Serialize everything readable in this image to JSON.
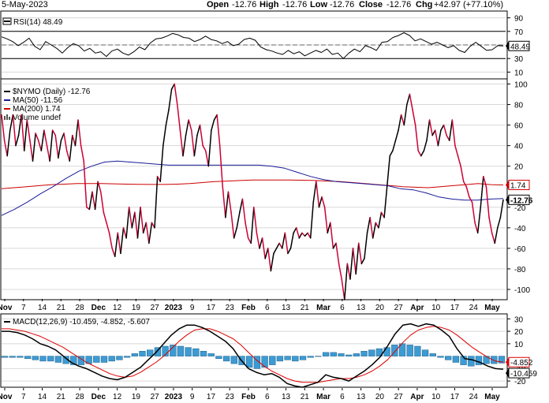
{
  "header": {
    "date": "5-May-2023",
    "open_label": "Open",
    "open_value": "-12.76",
    "high_label": "High",
    "high_value": "-12.76",
    "low_label": "Low",
    "low_value": "-12.76",
    "close_label": "Close",
    "close_value": "-12.76",
    "chg_label": "Chg",
    "chg_value": "+42.97 (+77.10%)"
  },
  "colors": {
    "rsi_line": "#000000",
    "price_up": "#000000",
    "price_down": "#cc0033",
    "ma50": "#1a1a99",
    "ma200": "#cc0000",
    "macd_line": "#000000",
    "signal_line": "#dd0000",
    "histogram": "#3d9bd3",
    "grid": "#d8d8d8"
  },
  "chart_data": [
    {
      "panel": "rsi",
      "type": "line",
      "legend": "RSI(14) 48.49",
      "legend_icon": "black-line-swatch",
      "ylim": [
        0,
        100
      ],
      "yticks": [
        "90",
        "70",
        "50",
        "30",
        "10"
      ],
      "reference_lines": [
        70,
        50,
        30
      ],
      "current_label": "48.49",
      "current_value": 48.49,
      "values": [
        62,
        59,
        55,
        49,
        54,
        60,
        48,
        43,
        55,
        50,
        45,
        38,
        46,
        52,
        49,
        41,
        45,
        38,
        40,
        33,
        41,
        44,
        38,
        35,
        40,
        47,
        43,
        53,
        59,
        60,
        63,
        67,
        65,
        61,
        60,
        55,
        58,
        63,
        58,
        56,
        52,
        55,
        49,
        51,
        58,
        60,
        57,
        47,
        43,
        41,
        38,
        36,
        42,
        37,
        40,
        34,
        38,
        42,
        39,
        44,
        36,
        38,
        30,
        38,
        44,
        40,
        49,
        46,
        42,
        54,
        55,
        61,
        64,
        68,
        64,
        56,
        59,
        55,
        51,
        54,
        50,
        46,
        49,
        42,
        39,
        48,
        54,
        48,
        42,
        43,
        49,
        48.49
      ]
    },
    {
      "panel": "price",
      "type": "line",
      "ylim": [
        -110,
        105
      ],
      "yticks": [
        "100",
        "80",
        "60",
        "40",
        "20",
        "-20",
        "-40",
        "-60",
        "-80",
        "-100"
      ],
      "legend": [
        {
          "icon": "black-line-swatch",
          "text": "$NYMO (Daily) -12.76"
        },
        {
          "icon": "blue-line-swatch",
          "text": "MA(50) -11.56"
        },
        {
          "icon": "red-line-swatch",
          "text": "MA(200) 1.74"
        },
        {
          "icon": "volume-bars-icon",
          "text": "Volume undef"
        }
      ],
      "value_tags": [
        {
          "label": "1.74",
          "value": 1.74,
          "style": "red-outline"
        },
        {
          "label": "-12.76",
          "value": -12.76,
          "style": "black-outline-bold"
        }
      ],
      "series": [
        {
          "name": "$NYMO (Daily)",
          "values": [
            70,
            45,
            30,
            55,
            70,
            40,
            50,
            70,
            35,
            65,
            45,
            25,
            52,
            45,
            35,
            55,
            40,
            25,
            55,
            50,
            28,
            45,
            52,
            35,
            25,
            50,
            40,
            65,
            40,
            25,
            -20,
            -22,
            -5,
            -22,
            5,
            -5,
            -25,
            -35,
            -45,
            -60,
            -68,
            -45,
            -65,
            -40,
            -50,
            -20,
            -40,
            -25,
            -50,
            -20,
            -45,
            -35,
            -55,
            -35,
            -40,
            10,
            5,
            40,
            60,
            75,
            95,
            100,
            80,
            55,
            30,
            50,
            65,
            55,
            30,
            50,
            60,
            40,
            35,
            20,
            55,
            65,
            70,
            40,
            0,
            -30,
            -5,
            -25,
            -50,
            -40,
            -25,
            -12,
            -35,
            -50,
            -55,
            -20,
            -45,
            -60,
            -50,
            -70,
            -60,
            -82,
            -65,
            -60,
            -55,
            -60,
            -45,
            -65,
            -60,
            -45,
            -40,
            -50,
            -45,
            -48,
            -45,
            -50,
            -15,
            5,
            -20,
            -10,
            -20,
            -45,
            -35,
            -60,
            -55,
            -75,
            -90,
            -110,
            -75,
            -90,
            -60,
            -85,
            -55,
            -75,
            -70,
            -45,
            -30,
            -50,
            -35,
            -40,
            -25,
            -30,
            0,
            30,
            35,
            45,
            55,
            70,
            60,
            80,
            90,
            75,
            60,
            35,
            30,
            35,
            45,
            65,
            50,
            55,
            40,
            55,
            60,
            50,
            45,
            65,
            40,
            30,
            20,
            5,
            0,
            -10,
            -15,
            -35,
            -45,
            -20,
            10,
            0,
            -30,
            -45,
            -55,
            -40,
            -30,
            -12.76
          ]
        },
        {
          "name": "MA(50)",
          "values": [
            -28,
            -22,
            -15,
            -7,
            0,
            8,
            15,
            20,
            24,
            25,
            24,
            23,
            22,
            21,
            21,
            21,
            21,
            21,
            21,
            21,
            21,
            20,
            18,
            14,
            10,
            7,
            5,
            4,
            3,
            2,
            1,
            -2,
            -3,
            -6,
            -10,
            -12,
            -13,
            -13,
            -12,
            -11.56
          ]
        },
        {
          "name": "MA(200)",
          "values": [
            -2,
            -1,
            0,
            1,
            2,
            2.5,
            3,
            3,
            3,
            2.8,
            2.5,
            2.3,
            2.2,
            2.2,
            2.5,
            3,
            4,
            5,
            5.5,
            6,
            6.5,
            6.5,
            6.5,
            6.5,
            6.3,
            6,
            5.5,
            5,
            4,
            3,
            2,
            1,
            0,
            -0.5,
            -1,
            0,
            1,
            2,
            3,
            2,
            1.74
          ]
        }
      ]
    },
    {
      "panel": "macd",
      "type": "line+histogram",
      "legend": "MACD(12,26,9) -10.459, -4.852, -5.607",
      "legend_icon": "black-line-swatch",
      "ylim": [
        -25,
        34
      ],
      "yticks": [
        "30",
        "20",
        "10",
        "-10",
        "-20"
      ],
      "value_tags": [
        {
          "label": "-4.852",
          "value": -4.852,
          "style": "red-outline"
        },
        {
          "label": "-10.459",
          "value": -10.459,
          "style": "black-outline"
        }
      ],
      "series": [
        {
          "name": "MACD",
          "values": [
            20,
            20,
            19,
            17,
            14,
            10,
            8,
            5,
            0,
            -5,
            -8,
            -10,
            -13,
            -16,
            -18,
            -19,
            -17,
            -13,
            -9,
            -3,
            3,
            10,
            17,
            22,
            25,
            25,
            23,
            20,
            16,
            12,
            6,
            -3,
            -10,
            -13,
            -15,
            -14,
            -17,
            -22,
            -24,
            -25,
            -23,
            -21,
            -15,
            -17,
            -18,
            -20,
            -16,
            -12,
            -7,
            -1,
            8,
            18,
            25,
            26,
            24,
            26,
            25,
            21,
            16,
            6,
            -2,
            -3,
            -5,
            -8,
            -10,
            -10.459
          ]
        },
        {
          "name": "Signal",
          "values": [
            22,
            22,
            21,
            20,
            18,
            16,
            13,
            10,
            7,
            3,
            -1,
            -5,
            -8,
            -11,
            -14,
            -16,
            -17,
            -16,
            -13,
            -9,
            -5,
            0,
            6,
            12,
            17,
            21,
            22,
            22,
            20,
            17,
            14,
            9,
            3,
            -3,
            -8,
            -12,
            -15,
            -18,
            -20,
            -21,
            -21,
            -21,
            -20,
            -19,
            -18,
            -18,
            -17,
            -15,
            -12,
            -8,
            -3,
            4,
            11,
            17,
            21,
            23,
            24,
            23,
            21,
            17,
            12,
            7,
            3,
            -1,
            -4,
            -4.852
          ]
        },
        {
          "name": "Histogram",
          "values": [
            -1,
            -1,
            -1,
            -2,
            -3,
            -4,
            -4,
            -5,
            -6,
            -7,
            -7,
            -6,
            -5,
            -5,
            -4,
            -3,
            -1,
            2,
            4,
            5,
            7,
            8,
            9,
            8,
            7,
            6,
            4,
            2,
            -2,
            -4,
            -6,
            -7,
            -9,
            -10,
            -9,
            -7,
            -4,
            -3,
            -4,
            -3,
            -1,
            0,
            3,
            3,
            2,
            1,
            2,
            4,
            5,
            6,
            7,
            9,
            10,
            9,
            8,
            5,
            2,
            -1,
            -3,
            -5,
            -7,
            -8,
            -7,
            -6,
            -6,
            -5.607
          ]
        }
      ]
    }
  ],
  "x_axis": {
    "labels": [
      "Nov",
      "7",
      "14",
      "21",
      "28",
      "Dec",
      "12",
      "19",
      "27",
      "2023",
      "9",
      "17",
      "23",
      "Feb",
      "6",
      "13",
      "21",
      "Mar",
      "6",
      "13",
      "20",
      "27",
      "Apr",
      "10",
      "17",
      "24",
      "May"
    ],
    "bold": [
      "Nov",
      "Dec",
      "2023",
      "Feb",
      "Mar",
      "Apr",
      "May"
    ]
  }
}
